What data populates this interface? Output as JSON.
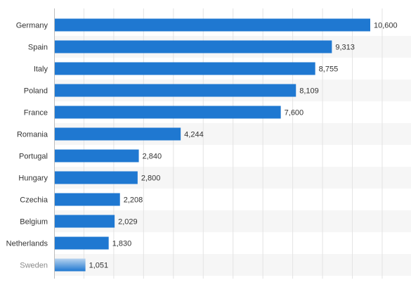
{
  "chart_data": {
    "type": "bar",
    "orientation": "horizontal",
    "title": "",
    "xlabel": "",
    "ylabel": "",
    "categories": [
      "Germany",
      "Spain",
      "Italy",
      "Poland",
      "France",
      "Romania",
      "Portugal",
      "Hungary",
      "Czechia",
      "Belgium",
      "Netherlands",
      "Sweden"
    ],
    "values": [
      10600,
      9313,
      8755,
      8109,
      7600,
      4244,
      2840,
      2800,
      2208,
      2029,
      1830,
      1051
    ],
    "value_labels": [
      "10,600",
      "9,313",
      "8,755",
      "8,109",
      "7,600",
      "4,244",
      "2,840",
      "2,800",
      "2,208",
      "2,029",
      "1,830",
      "1,051"
    ],
    "xlim": [
      0,
      12000
    ],
    "grid": true,
    "legend": "none",
    "colors": {
      "bar": "#1f78d1",
      "bar_faded_top": "#b7d3ef",
      "row_band": "#f6f6f6",
      "grid": "#e3e3e3",
      "axis": "#bdbdbd"
    }
  }
}
